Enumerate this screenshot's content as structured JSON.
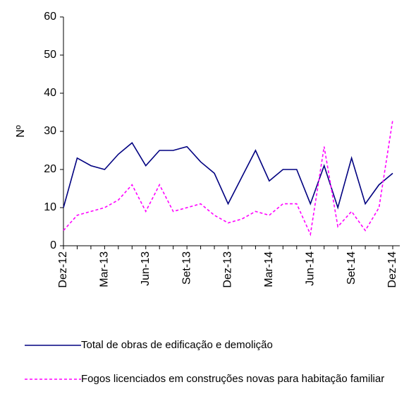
{
  "chart_data": {
    "type": "line",
    "y_label": "Nº",
    "categories": [
      "Dez-12",
      null,
      null,
      "Mar-13",
      null,
      null,
      "Jun-13",
      null,
      null,
      "Set-13",
      null,
      null,
      "Dez-13",
      null,
      null,
      "Mar-14",
      null,
      null,
      "Jun-14",
      null,
      null,
      "Set-14",
      null,
      null,
      "Dez-14"
    ],
    "series": [
      {
        "name": "Total de obras de edificação e demolição",
        "color": "#000080",
        "dash": false,
        "values": [
          10,
          23,
          21,
          20,
          24,
          27,
          21,
          25,
          25,
          26,
          22,
          19,
          11,
          18,
          25,
          17,
          20,
          20,
          11,
          21,
          10,
          23,
          11,
          16,
          19
        ]
      },
      {
        "name": "Fogos licenciados em construções novas para habitação familiar",
        "color": "#ff00ff",
        "dash": true,
        "values": [
          4,
          8,
          9,
          10,
          12,
          16,
          9,
          16,
          9,
          10,
          11,
          8,
          6,
          7,
          9,
          8,
          11,
          11,
          3,
          26,
          5,
          9,
          4,
          10,
          33
        ]
      }
    ],
    "ylim": [
      0,
      60
    ],
    "yticks": [
      0,
      10,
      20,
      30,
      40,
      50,
      60
    ],
    "grid": false
  }
}
